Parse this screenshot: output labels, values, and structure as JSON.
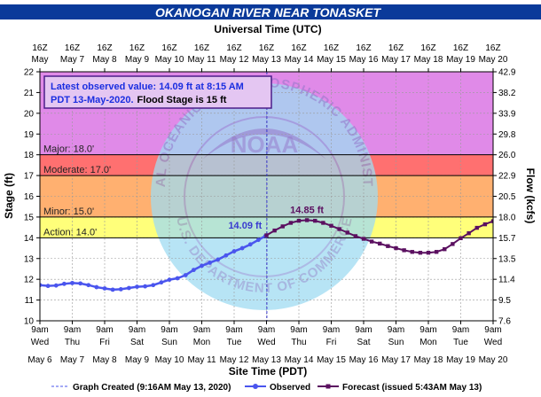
{
  "colors": {
    "title_bg": "#0a3a9a",
    "title_text": "#ffffff",
    "major_band": "#e08ae8",
    "moderate_band": "#ff7070",
    "minor_band": "#ffb070",
    "action_band": "#ffff7a",
    "normal_band": "#ffffff",
    "observed": "#4a55ee",
    "forecast": "#5b1060",
    "info_border": "#4c1f8a",
    "info_blue": "#1a2ee0",
    "logo_circle": "#9fdcf2",
    "logo_dark": "#7a6fc0"
  },
  "chart_data": {
    "type": "line",
    "title": "OKANOGAN RIVER NEAR TONASKET",
    "top_axis_title": "Universal Time (UTC)",
    "xlabel": "Site Time (PDT)",
    "ylabel_left": "Stage (ft)",
    "ylabel_right": "Flow (kcfs)",
    "ylim": [
      10,
      22
    ],
    "x_range_days": [
      "May 6",
      "May 20"
    ],
    "y_ticks": [
      "10",
      "11",
      "12",
      "13",
      "14",
      "15",
      "16",
      "17",
      "18",
      "19",
      "20",
      "21",
      "22"
    ],
    "right_ticks": [
      "7.6",
      "9.5",
      "11.4",
      "13.5",
      "15.7",
      "18.0",
      "20.5",
      "22.9",
      "26.0",
      "29.8",
      "33.9",
      "38.2",
      "42.9"
    ],
    "top_ticks": [
      {
        "time": "16Z",
        "date": "May 6"
      },
      {
        "time": "16Z",
        "date": "May 7"
      },
      {
        "time": "16Z",
        "date": "May 8"
      },
      {
        "time": "16Z",
        "date": "May 9"
      },
      {
        "time": "16Z",
        "date": "May 10"
      },
      {
        "time": "16Z",
        "date": "May 11"
      },
      {
        "time": "16Z",
        "date": "May 12"
      },
      {
        "time": "16Z",
        "date": "May 13"
      },
      {
        "time": "16Z",
        "date": "May 14"
      },
      {
        "time": "16Z",
        "date": "May 15"
      },
      {
        "time": "16Z",
        "date": "May 16"
      },
      {
        "time": "16Z",
        "date": "May 17"
      },
      {
        "time": "16Z",
        "date": "May 18"
      },
      {
        "time": "16Z",
        "date": "May 19"
      },
      {
        "time": "16Z",
        "date": "May 20"
      }
    ],
    "top_tick_first_day_label": "May",
    "bottom_ticks": [
      {
        "time": "9am",
        "day": "Wed",
        "date": "May 6"
      },
      {
        "time": "9am",
        "day": "Thu",
        "date": "May 7"
      },
      {
        "time": "9am",
        "day": "Fri",
        "date": "May 8"
      },
      {
        "time": "9am",
        "day": "Sat",
        "date": "May 9"
      },
      {
        "time": "9am",
        "day": "Sun",
        "date": "May 10"
      },
      {
        "time": "9am",
        "day": "Mon",
        "date": "May 11"
      },
      {
        "time": "9am",
        "day": "Tue",
        "date": "May 12"
      },
      {
        "time": "9am",
        "day": "Wed",
        "date": "May 13"
      },
      {
        "time": "9am",
        "day": "Thu",
        "date": "May 14"
      },
      {
        "time": "9am",
        "day": "Fri",
        "date": "May 15"
      },
      {
        "time": "9am",
        "day": "Sat",
        "date": "May 16"
      },
      {
        "time": "9am",
        "day": "Sun",
        "date": "May 17"
      },
      {
        "time": "9am",
        "day": "Mon",
        "date": "May 18"
      },
      {
        "time": "9am",
        "day": "Tue",
        "date": "May 19"
      },
      {
        "time": "9am",
        "day": "Wed",
        "date": "May 20"
      }
    ],
    "flood_categories": [
      {
        "name": "Major",
        "label": "Major: 18.0'",
        "stage": 18.0,
        "color_key": "major_band"
      },
      {
        "name": "Moderate",
        "label": "Moderate: 17.0'",
        "stage": 17.0,
        "color_key": "moderate_band"
      },
      {
        "name": "Minor",
        "label": "Minor: 15.0'",
        "stage": 15.0,
        "color_key": "minor_band"
      },
      {
        "name": "Action",
        "label": "Action: 14.0'",
        "stage": 14.0,
        "color_key": "action_band"
      }
    ],
    "info_box": {
      "line1": "Latest observed value: 14.09 ft at 8:15 AM",
      "line2_date": "PDT 13-May-2020.",
      "line2_flood": "Flood Stage is 15 ft"
    },
    "graph_created_time": "2020-05-13 09:16",
    "series": [
      {
        "name": "Observed",
        "points": [
          {
            "t": "2020-05-06 09:00",
            "v": 11.72
          },
          {
            "t": "2020-05-06 15:00",
            "v": 11.68
          },
          {
            "t": "2020-05-06 21:00",
            "v": 11.7
          },
          {
            "t": "2020-05-07 03:00",
            "v": 11.78
          },
          {
            "t": "2020-05-07 09:00",
            "v": 11.82
          },
          {
            "t": "2020-05-07 15:00",
            "v": 11.8
          },
          {
            "t": "2020-05-07 21:00",
            "v": 11.72
          },
          {
            "t": "2020-05-08 03:00",
            "v": 11.62
          },
          {
            "t": "2020-05-08 09:00",
            "v": 11.56
          },
          {
            "t": "2020-05-08 15:00",
            "v": 11.5
          },
          {
            "t": "2020-05-08 21:00",
            "v": 11.52
          },
          {
            "t": "2020-05-09 03:00",
            "v": 11.58
          },
          {
            "t": "2020-05-09 09:00",
            "v": 11.64
          },
          {
            "t": "2020-05-09 15:00",
            "v": 11.66
          },
          {
            "t": "2020-05-09 21:00",
            "v": 11.72
          },
          {
            "t": "2020-05-10 03:00",
            "v": 11.85
          },
          {
            "t": "2020-05-10 09:00",
            "v": 11.98
          },
          {
            "t": "2020-05-10 15:00",
            "v": 12.05
          },
          {
            "t": "2020-05-10 21:00",
            "v": 12.2
          },
          {
            "t": "2020-05-11 03:00",
            "v": 12.45
          },
          {
            "t": "2020-05-11 09:00",
            "v": 12.65
          },
          {
            "t": "2020-05-11 15:00",
            "v": 12.8
          },
          {
            "t": "2020-05-11 21:00",
            "v": 12.95
          },
          {
            "t": "2020-05-12 03:00",
            "v": 13.15
          },
          {
            "t": "2020-05-12 09:00",
            "v": 13.35
          },
          {
            "t": "2020-05-12 15:00",
            "v": 13.5
          },
          {
            "t": "2020-05-12 21:00",
            "v": 13.68
          },
          {
            "t": "2020-05-13 03:00",
            "v": 13.9
          },
          {
            "t": "2020-05-13 08:15",
            "v": 14.09
          }
        ]
      },
      {
        "name": "Forecast",
        "issued": "5:43AM May 13",
        "points": [
          {
            "t": "2020-05-13 09:00",
            "v": 14.12
          },
          {
            "t": "2020-05-13 15:00",
            "v": 14.35
          },
          {
            "t": "2020-05-13 21:00",
            "v": 14.55
          },
          {
            "t": "2020-05-14 03:00",
            "v": 14.72
          },
          {
            "t": "2020-05-14 09:00",
            "v": 14.82
          },
          {
            "t": "2020-05-14 15:00",
            "v": 14.85
          },
          {
            "t": "2020-05-14 21:00",
            "v": 14.82
          },
          {
            "t": "2020-05-15 03:00",
            "v": 14.72
          },
          {
            "t": "2020-05-15 09:00",
            "v": 14.58
          },
          {
            "t": "2020-05-15 15:00",
            "v": 14.42
          },
          {
            "t": "2020-05-15 21:00",
            "v": 14.25
          },
          {
            "t": "2020-05-16 03:00",
            "v": 14.08
          },
          {
            "t": "2020-05-16 09:00",
            "v": 13.95
          },
          {
            "t": "2020-05-16 15:00",
            "v": 13.82
          },
          {
            "t": "2020-05-16 21:00",
            "v": 13.72
          },
          {
            "t": "2020-05-17 03:00",
            "v": 13.6
          },
          {
            "t": "2020-05-17 09:00",
            "v": 13.5
          },
          {
            "t": "2020-05-17 15:00",
            "v": 13.4
          },
          {
            "t": "2020-05-17 21:00",
            "v": 13.32
          },
          {
            "t": "2020-05-18 03:00",
            "v": 13.28
          },
          {
            "t": "2020-05-18 09:00",
            "v": 13.28
          },
          {
            "t": "2020-05-18 15:00",
            "v": 13.32
          },
          {
            "t": "2020-05-18 21:00",
            "v": 13.45
          },
          {
            "t": "2020-05-19 03:00",
            "v": 13.7
          },
          {
            "t": "2020-05-19 09:00",
            "v": 13.98
          },
          {
            "t": "2020-05-19 15:00",
            "v": 14.22
          },
          {
            "t": "2020-05-19 21:00",
            "v": 14.48
          },
          {
            "t": "2020-05-20 03:00",
            "v": 14.65
          },
          {
            "t": "2020-05-20 09:00",
            "v": 14.8
          }
        ]
      }
    ],
    "annotations": [
      {
        "text": "14.09 ft",
        "t": "2020-05-13 08:15",
        "v": 14.09,
        "series": "Observed"
      },
      {
        "text": "14.85 ft",
        "t": "2020-05-14 15:00",
        "v": 14.85,
        "series": "Forecast"
      }
    ],
    "legend": {
      "position": "bottom",
      "graph_created": "Graph Created (9:16AM May 13, 2020)",
      "observed": "Observed",
      "forecast": "Forecast (issued 5:43AM May 13)"
    },
    "watermark": {
      "ring_text_top": "NATIONAL OCEANIC AND ATMOSPHERIC ADMINISTRATION",
      "ring_text_bottom": "U.S. DEPARTMENT OF COMMERCE",
      "center_text": "NOAA"
    }
  }
}
